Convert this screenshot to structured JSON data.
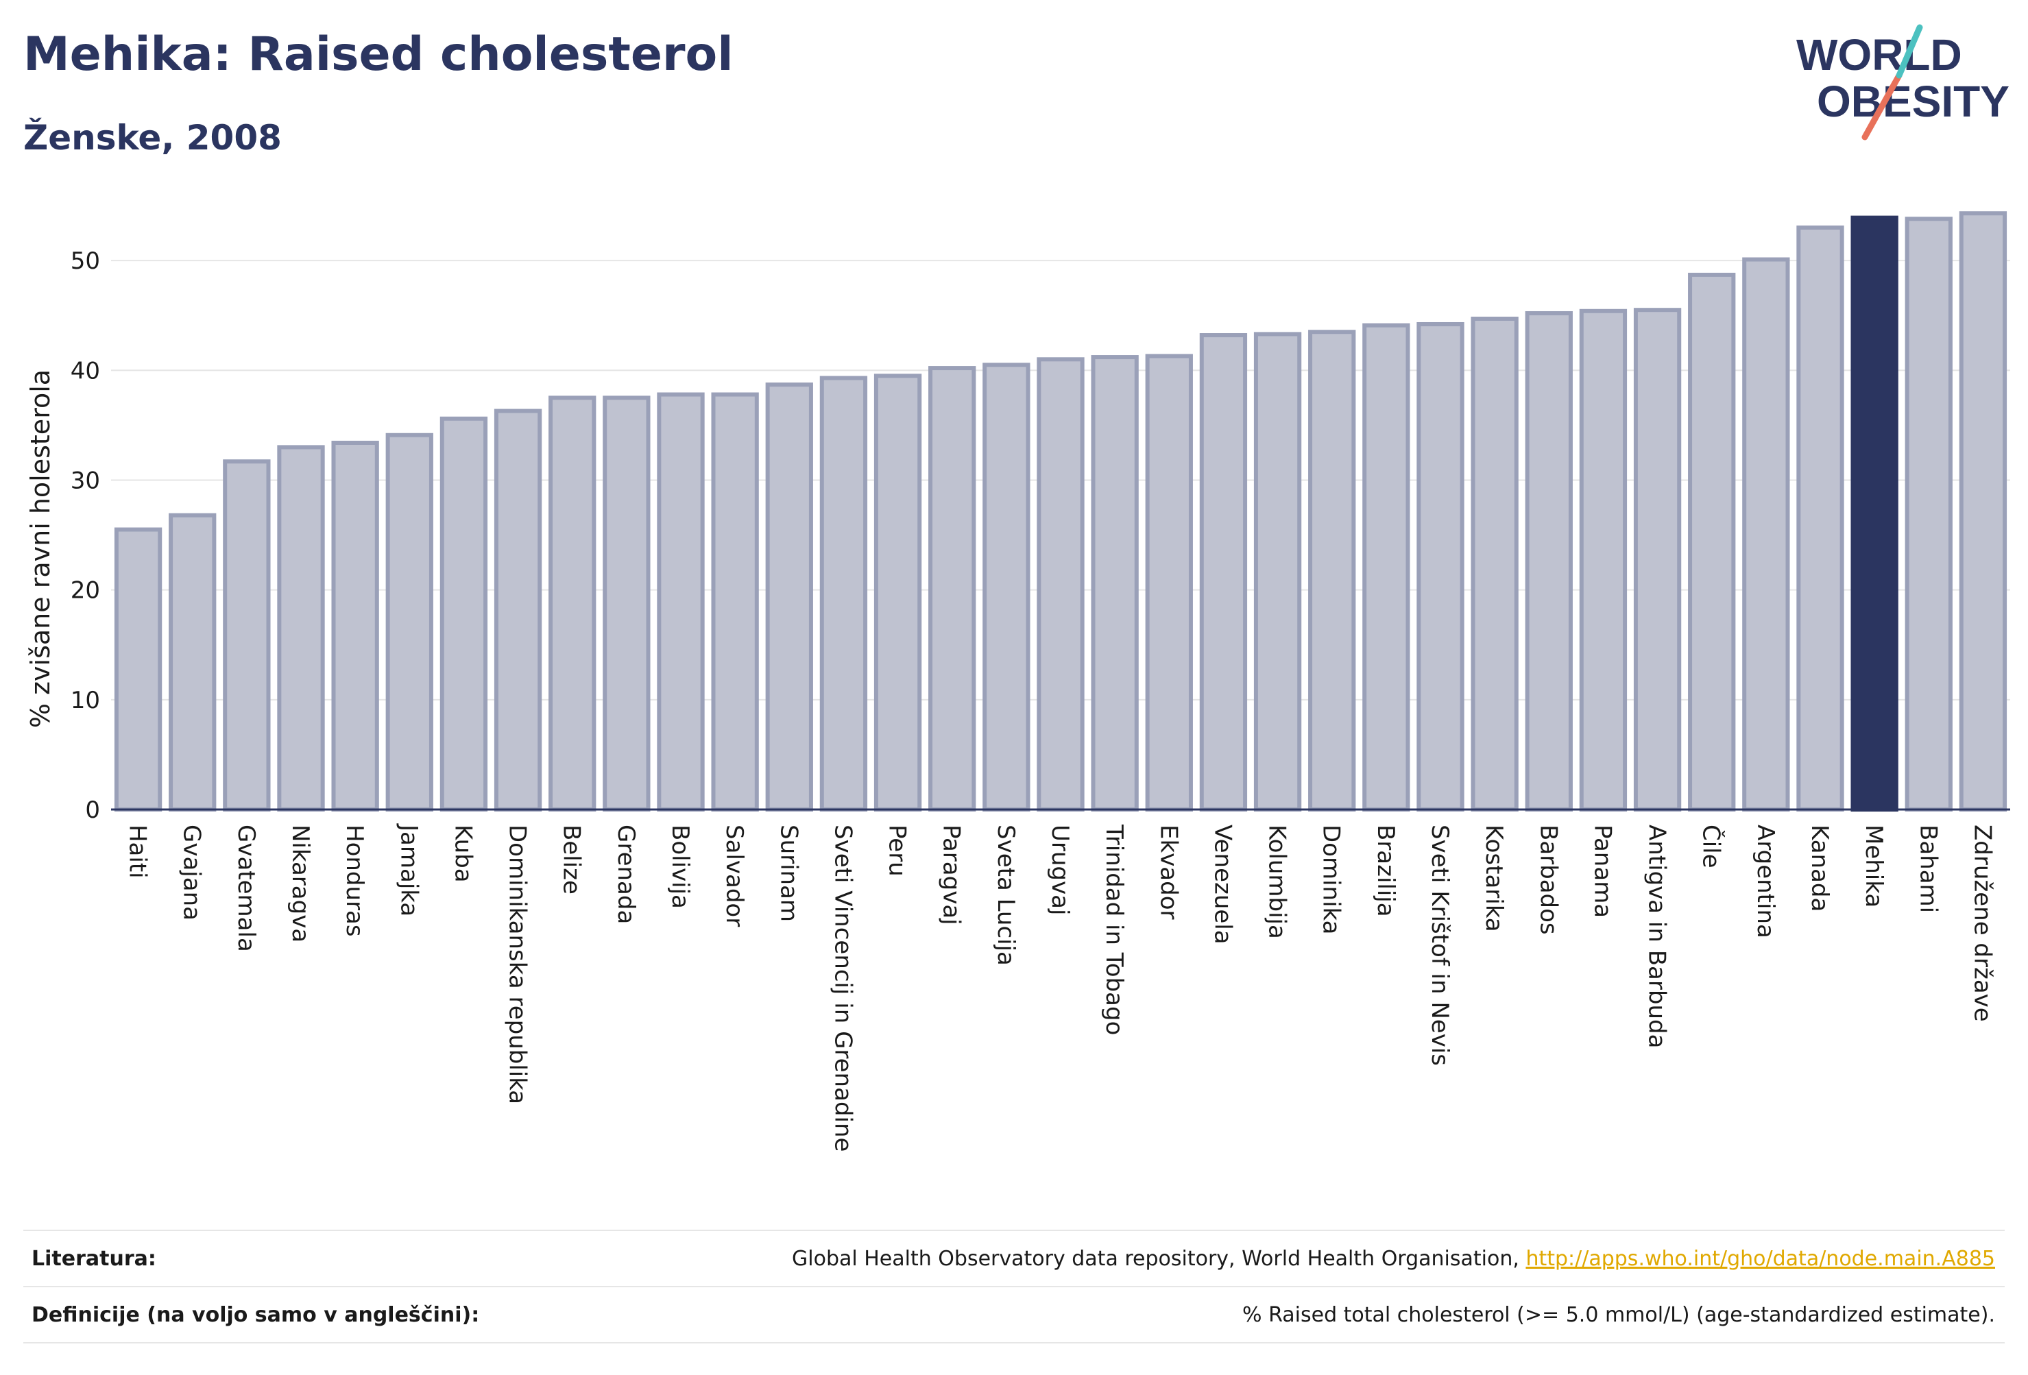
{
  "header": {
    "title": "Mehika: Raised cholesterol",
    "subtitle": "Ženske, 2008",
    "logo_line1": "WORLD",
    "logo_line2": "OBESITY"
  },
  "colors": {
    "bar_fill": "#bfc2d0",
    "bar_stroke": "#9aa0b8",
    "highlight": "#2b3560",
    "title": "#2b3560",
    "link": "#e0a800"
  },
  "chart_data": {
    "type": "bar",
    "ylabel": "% zvišane ravni holesterola",
    "ylim": [
      0,
      55
    ],
    "yticks": [
      0,
      10,
      20,
      30,
      40,
      50
    ],
    "grid": true,
    "highlight": "Mehika",
    "categories": [
      "Haiti",
      "Gvajana",
      "Gvatemala",
      "Nikaragva",
      "Honduras",
      "Jamajka",
      "Kuba",
      "Dominikanska republika",
      "Belize",
      "Grenada",
      "Bolivija",
      "Salvador",
      "Surinam",
      "Sveti Vincencij in Grenadine",
      "Peru",
      "Paragvaj",
      "Sveta Lucija",
      "Urugvaj",
      "Trinidad in Tobago",
      "Ekvador",
      "Venezuela",
      "Kolumbija",
      "Dominika",
      "Brazilija",
      "Sveti Krištof in Nevis",
      "Kostarika",
      "Barbados",
      "Panama",
      "Antigva in Barbuda",
      "Čile",
      "Argentina",
      "Kanada",
      "Mehika",
      "Bahami",
      "Združene države"
    ],
    "values": [
      25.5,
      26.8,
      31.7,
      33.0,
      33.4,
      34.1,
      35.6,
      36.3,
      37.5,
      37.5,
      37.8,
      37.8,
      38.7,
      39.3,
      39.5,
      40.2,
      40.5,
      41.0,
      41.2,
      41.3,
      43.2,
      43.3,
      43.5,
      44.1,
      44.2,
      44.7,
      45.2,
      45.4,
      45.5,
      48.7,
      50.1,
      53.0,
      53.9,
      53.8,
      54.3
    ]
  },
  "footer": {
    "sources_label": "Literatura:",
    "sources_text": "Global Health Observatory data repository, World Health Organisation, ",
    "sources_link": "http://apps.who.int/gho/data/node.main.A885",
    "definitions_label": "Definicije (na voljo samo v angleščini):",
    "definitions_text": "% Raised total cholesterol (>= 5.0 mmol/L) (age-standardized estimate)."
  }
}
